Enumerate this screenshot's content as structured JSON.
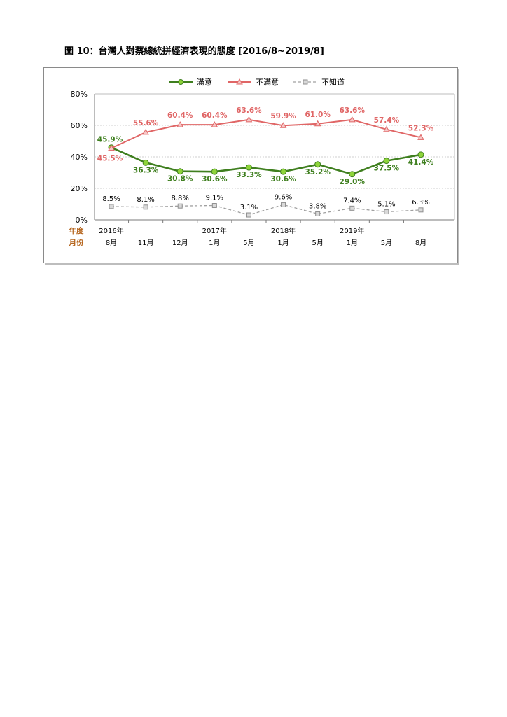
{
  "caption": "圖 10：台灣人對蔡總統拼經濟表現的態度  [2016/8~2019/8]",
  "chart_data": {
    "type": "line",
    "title": "",
    "xlabel": "",
    "ylabel": "",
    "ylim": [
      0,
      80
    ],
    "yticks": [
      "0%",
      "20%",
      "40%",
      "60%",
      "80%"
    ],
    "y_ticks_values": [
      0,
      20,
      40,
      60,
      80
    ],
    "grid": "dotted horizontal",
    "legend_position": "top",
    "row_labels": {
      "year": "年度",
      "month": "月份"
    },
    "categories": [
      {
        "year": "2016年",
        "month": "8月"
      },
      {
        "year": "",
        "month": "11月"
      },
      {
        "year": "",
        "month": "12月"
      },
      {
        "year": "2017年",
        "month": "1月"
      },
      {
        "year": "",
        "month": "5月"
      },
      {
        "year": "2018年",
        "month": "1月"
      },
      {
        "year": "",
        "month": "5月"
      },
      {
        "year": "2019年",
        "month": "1月"
      },
      {
        "year": "",
        "month": "5月"
      },
      {
        "year": "",
        "month": "8月"
      }
    ],
    "series": [
      {
        "name": "滿意",
        "color": "#3f7f1f",
        "marker": "circle",
        "values": [
          45.9,
          36.3,
          30.8,
          30.6,
          33.3,
          30.6,
          35.2,
          29.0,
          37.5,
          41.4
        ],
        "labels": [
          "45.9%",
          "36.3%",
          "30.8%",
          "30.6%",
          "33.3%",
          "30.6%",
          "35.2%",
          "29.0%",
          "37.5%",
          "41.4%"
        ]
      },
      {
        "name": "不滿意",
        "color": "#e06666",
        "marker": "triangle",
        "values": [
          45.5,
          55.6,
          60.4,
          60.4,
          63.6,
          59.9,
          61.0,
          63.6,
          57.4,
          52.3
        ],
        "labels": [
          "45.5%",
          "55.6%",
          "60.4%",
          "60.4%",
          "63.6%",
          "59.9%",
          "61.0%",
          "63.6%",
          "57.4%",
          "52.3%"
        ]
      },
      {
        "name": "不知道",
        "color": "#a0a0a0",
        "marker": "square-dashed",
        "values": [
          8.5,
          8.1,
          8.8,
          9.1,
          3.1,
          9.6,
          3.8,
          7.4,
          5.1,
          6.3
        ],
        "labels": [
          "8.5%",
          "8.1%",
          "8.8%",
          "9.1%",
          "3.1%",
          "9.6%",
          "3.8%",
          "7.4%",
          "5.1%",
          "6.3%"
        ]
      }
    ]
  }
}
